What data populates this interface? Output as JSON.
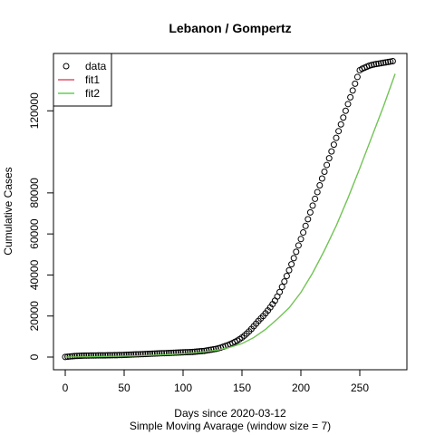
{
  "chart_data": {
    "type": "line",
    "title": "Lebanon / Gompertz",
    "xlabel": "Days since 2020-03-12",
    "xlabel2": "Simple Moving Avarage (window size = 7)",
    "ylabel": "Cumulative Cases",
    "xlim": [
      0,
      280
    ],
    "ylim": [
      0,
      140000
    ],
    "xticks": [
      0,
      50,
      100,
      150,
      200,
      250
    ],
    "yticks": [
      0,
      20000,
      40000,
      60000,
      80000,
      120000
    ],
    "legend_position": "top-left",
    "grid": false,
    "series": [
      {
        "name": "data",
        "kind": "points",
        "color": "#000000",
        "x": [
          0,
          2,
          4,
          6,
          8,
          10,
          12,
          14,
          16,
          18,
          20,
          22,
          24,
          26,
          28,
          30,
          32,
          34,
          36,
          38,
          40,
          42,
          44,
          46,
          48,
          50,
          52,
          54,
          56,
          58,
          60,
          62,
          64,
          66,
          68,
          70,
          72,
          74,
          76,
          78,
          80,
          82,
          84,
          86,
          88,
          90,
          92,
          94,
          96,
          98,
          100,
          102,
          104,
          106,
          108,
          110,
          112,
          114,
          116,
          118,
          120,
          122,
          124,
          126,
          128,
          130,
          132,
          134,
          136,
          138,
          140,
          142,
          144,
          146,
          148,
          150,
          152,
          154,
          156,
          158,
          160,
          162,
          164,
          166,
          168,
          170,
          172,
          174,
          176,
          178,
          180,
          182,
          184,
          186,
          188,
          190,
          192,
          194,
          196,
          198,
          200,
          202,
          204,
          206,
          208,
          210,
          212,
          214,
          216,
          218,
          220,
          222,
          224,
          226,
          228,
          230,
          232,
          234,
          236,
          238,
          240,
          242,
          244,
          246,
          248,
          250,
          252,
          254,
          256,
          258,
          260,
          262,
          264,
          266,
          268,
          270,
          272,
          274,
          276,
          278
        ],
        "y": [
          50,
          150,
          300,
          400,
          500,
          550,
          600,
          650,
          700,
          720,
          740,
          760,
          780,
          800,
          810,
          820,
          830,
          840,
          860,
          880,
          900,
          920,
          950,
          980,
          1000,
          1050,
          1100,
          1150,
          1200,
          1250,
          1300,
          1350,
          1400,
          1450,
          1500,
          1550,
          1600,
          1650,
          1700,
          1750,
          1800,
          1850,
          1900,
          1950,
          2000,
          2050,
          2100,
          2150,
          2200,
          2250,
          2300,
          2350,
          2400,
          2450,
          2500,
          2600,
          2700,
          2800,
          2900,
          3000,
          3200,
          3400,
          3600,
          3800,
          4000,
          4300,
          4600,
          5000,
          5400,
          5800,
          6300,
          6800,
          7400,
          8000,
          8700,
          9500,
          10400,
          11400,
          12500,
          13700,
          15000,
          16300,
          17600,
          18800,
          20000,
          21300,
          22700,
          24200,
          25800,
          27500,
          29500,
          31700,
          34200,
          36800,
          39500,
          42300,
          45200,
          48200,
          51300,
          54400,
          57500,
          60700,
          63900,
          67200,
          70500,
          73800,
          77100,
          80400,
          83700,
          87000,
          90300,
          93600,
          96900,
          100200,
          103500,
          106800,
          110100,
          113400,
          116700,
          120000,
          123300,
          126600,
          129900,
          133200,
          136500,
          139800,
          140500,
          141000,
          141500,
          142000,
          142300,
          142600,
          142800,
          143000,
          143200,
          143400,
          143600,
          143800,
          144000,
          144200
        ]
      },
      {
        "name": "fit1",
        "kind": "line",
        "color": "#DF536B",
        "x": [
          0,
          10,
          20,
          30,
          40,
          50,
          60,
          70,
          80,
          90,
          100,
          110,
          120,
          130,
          140,
          150,
          160,
          170,
          180,
          190,
          200,
          210,
          220,
          230,
          240,
          250,
          260,
          270,
          280
        ],
        "y": [
          0,
          80,
          160,
          250,
          350,
          470,
          620,
          800,
          1020,
          1300,
          1650,
          2100,
          2700,
          3500,
          4800,
          6600,
          9500,
          13500,
          18500,
          24000,
          31500,
          41000,
          52000,
          64000,
          77500,
          92000,
          107000,
          122000,
          138000
        ]
      },
      {
        "name": "fit2",
        "kind": "line",
        "color": "#61D04F",
        "x": [
          0,
          10,
          20,
          30,
          40,
          50,
          60,
          70,
          80,
          90,
          100,
          110,
          120,
          130,
          140,
          150,
          160,
          170,
          180,
          190,
          200,
          210,
          220,
          230,
          240,
          250,
          260,
          270,
          280
        ],
        "y": [
          0,
          75,
          150,
          240,
          340,
          460,
          610,
          790,
          1010,
          1290,
          1640,
          2090,
          2690,
          3490,
          4790,
          6590,
          9490,
          13490,
          18490,
          23990,
          31490,
          40990,
          51990,
          63990,
          77490,
          91990,
          106990,
          121990,
          137990
        ]
      }
    ]
  }
}
